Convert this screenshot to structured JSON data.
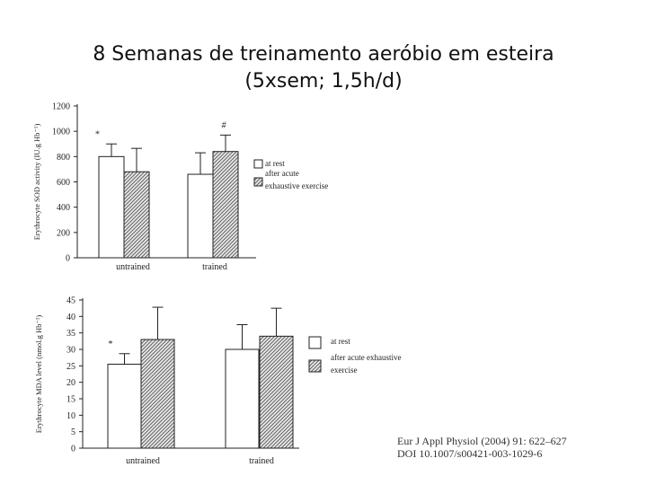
{
  "slide": {
    "title_line1": "8 Semanas de treinamento aeróbio em esteira",
    "title_line2": "(5xsem; 1,5h/d)"
  },
  "reference": {
    "line1": "Eur J Appl Physiol (2004) 91: 622–627",
    "line2": "DOI 10.1007/s00421-003-1029-6"
  },
  "colors": {
    "rest_fill": "#ffffff",
    "exercise_fill": "#bdbdbd",
    "stroke": "#222222"
  },
  "chart_data": [
    {
      "type": "bar",
      "ylabel": "Erythrocyte SOD activity (IU.g Hb⁻¹)",
      "ylim": [
        0,
        1200
      ],
      "yticks": [
        0,
        200,
        400,
        600,
        800,
        1000,
        1200
      ],
      "categories": [
        "untrained",
        "trained"
      ],
      "series": [
        {
          "name": "at rest",
          "values": [
            800,
            660
          ],
          "errors": [
            100,
            170
          ]
        },
        {
          "name": "after acute exhaustive exercise",
          "values": [
            680,
            840
          ],
          "errors": [
            185,
            130
          ]
        }
      ],
      "annotations": [
        {
          "text": "*",
          "category": 0,
          "series": 0
        },
        {
          "text": "#",
          "category": 1,
          "series": 1
        }
      ],
      "legend": [
        "at rest",
        "after acute",
        "exhaustive exercise"
      ]
    },
    {
      "type": "bar",
      "ylabel": "Erythrocyte MDA level (nmol.g Hb⁻¹)",
      "ylim": [
        0,
        45
      ],
      "yticks": [
        0,
        5,
        10,
        15,
        20,
        25,
        30,
        35,
        40,
        45
      ],
      "categories": [
        "untrained",
        "trained"
      ],
      "series": [
        {
          "name": "at rest",
          "values": [
            25.5,
            30
          ],
          "errors": [
            3.2,
            7.5
          ]
        },
        {
          "name": "after acute exhaustive exercise",
          "values": [
            33,
            34
          ],
          "errors": [
            9.8,
            8.5
          ]
        }
      ],
      "annotations": [
        {
          "text": "*",
          "category": 0,
          "series": 0
        }
      ],
      "legend": [
        "at rest",
        "after acute exhaustive",
        "exercise"
      ]
    }
  ]
}
